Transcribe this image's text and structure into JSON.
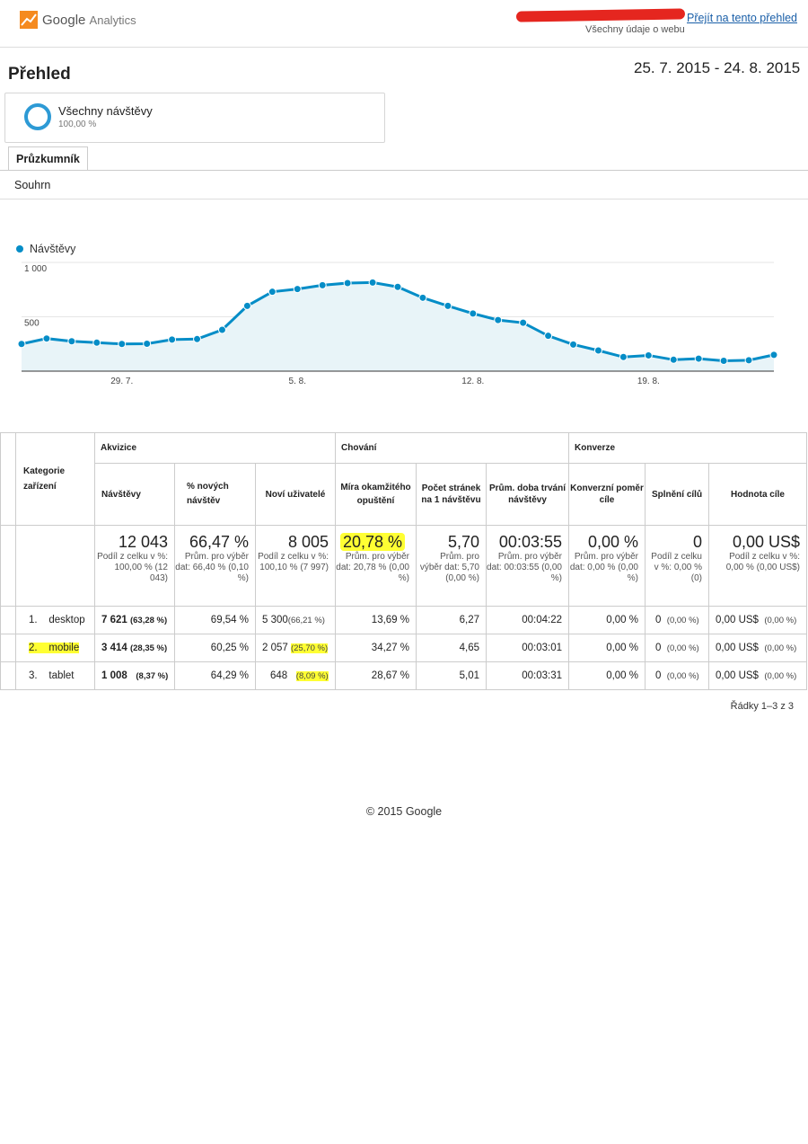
{
  "header": {
    "logo_text": "Google",
    "logo_sub": "Analytics",
    "goto_link": "Přejít na tento přehled",
    "scope": "Všechny údaje o webu"
  },
  "page_title": "Přehled",
  "date_range": "25. 7. 2015 - 24. 8. 2015",
  "segment": {
    "name": "Všechny návštěvy",
    "percent": "100,00 %"
  },
  "tab": "Průzkumník",
  "summary_label": "Souhrn",
  "chart_data": {
    "type": "line",
    "series": [
      {
        "name": "Návštěvy",
        "values": [
          250,
          300,
          275,
          262,
          250,
          252,
          290,
          295,
          380,
          600,
          730,
          755,
          790,
          810,
          815,
          775,
          675,
          600,
          530,
          470,
          445,
          325,
          245,
          190,
          130,
          145,
          105,
          115,
          95,
          100,
          150
        ]
      }
    ],
    "x_ticks": [
      {
        "label": "29. 7.",
        "index": 4
      },
      {
        "label": "5. 8.",
        "index": 11
      },
      {
        "label": "12. 8.",
        "index": 18
      },
      {
        "label": "19. 8.",
        "index": 25
      }
    ],
    "y_ticks": [
      "500",
      "1 000"
    ],
    "ylim": [
      0,
      1000
    ],
    "color": "#058dc7",
    "fill": "#e8f4f8"
  },
  "table": {
    "col_kategorie": "Kategorie zařízení",
    "group_akvizice": "Akvizice",
    "group_chovani": "Chování",
    "group_konverze": "Konverze",
    "h_navstevy": "Návštěvy",
    "h_nove": "% nových návštěv",
    "h_novi_uziv": "Noví uživatelé",
    "h_mira": "Míra okamžitého opuštění",
    "h_pocet": "Počet stránek na 1 návštěvu",
    "h_doba": "Prům. doba trvání návštěvy",
    "h_konv": "Konverzní poměr cíle",
    "h_splneni": "Splnění cílů",
    "h_hodnota": "Hodnota cíle",
    "summary": {
      "navstevy": "12 043",
      "navstevy_sub": "Podíl z celku v %: 100,00 % (12 043)",
      "nove": "66,47 %",
      "nove_sub": "Prům. pro výběr dat: 66,40 % (0,10 %)",
      "novi": "8 005",
      "novi_sub": "Podíl z celku v %: 100,10 % (7 997)",
      "mira": "20,78 %",
      "mira_sub": "Prům. pro výběr dat: 20,78 % (0,00 %)",
      "pocet": "5,70",
      "pocet_sub": "Prům. pro výběr dat: 5,70 (0,00 %)",
      "doba": "00:03:55",
      "doba_sub": "Prům. pro výběr dat: 00:03:55 (0,00 %)",
      "konv": "0,00 %",
      "konv_sub": "Prům. pro výběr dat: 0,00 % (0,00 %)",
      "splneni": "0",
      "splneni_sub": "Podíl z celku v %: 0,00 % (0)",
      "hodnota": "0,00 US$",
      "hodnota_sub": "Podíl z celku v %: 0,00 % (0,00 US$)"
    },
    "rows": [
      {
        "n": "1.",
        "cat": "desktop",
        "nav": "7 621",
        "nav_pct": "(63,28 %)",
        "nove": "69,54 %",
        "novi": "5 300",
        "novi_pct": "(66,21 %)",
        "mira": "13,69 %",
        "pocet": "6,27",
        "doba": "00:04:22",
        "konv": "0,00 %",
        "spl": "0",
        "spl_pct": "(0,00 %)",
        "hod": "0,00 US$",
        "hod_pct": "(0,00 %)"
      },
      {
        "n": "2.",
        "cat": "mobile",
        "nav": "3 414",
        "nav_pct": "(28,35 %)",
        "nove": "60,25 %",
        "novi": "2 057",
        "novi_pct": "(25,70 %)",
        "mira": "34,27 %",
        "pocet": "4,65",
        "doba": "00:03:01",
        "konv": "0,00 %",
        "spl": "0",
        "spl_pct": "(0,00 %)",
        "hod": "0,00 US$",
        "hod_pct": "(0,00 %)"
      },
      {
        "n": "3.",
        "cat": "tablet",
        "nav": "1 008",
        "nav_pct": "(8,37 %)",
        "nove": "64,29 %",
        "novi": "648",
        "novi_pct": "(8,09 %)",
        "mira": "28,67 %",
        "pocet": "5,01",
        "doba": "00:03:31",
        "konv": "0,00 %",
        "spl": "0",
        "spl_pct": "(0,00 %)",
        "hod": "0,00 US$",
        "hod_pct": "(0,00 %)"
      }
    ],
    "rows_info": "Řádky 1–3 z 3"
  },
  "footer": "© 2015 Google",
  "colors": {
    "highlight": "#ffff33",
    "accent": "#058dc7",
    "link": "#1a5fa8"
  }
}
